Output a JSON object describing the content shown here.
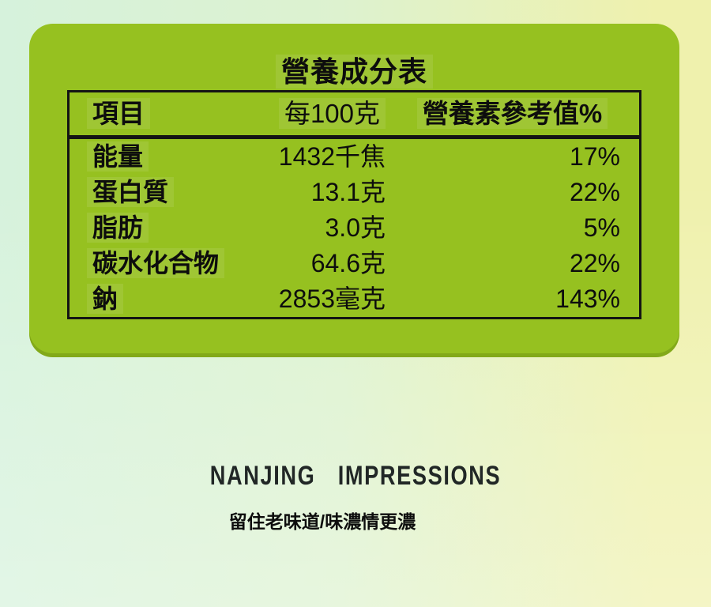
{
  "colors": {
    "panel_green": "#96c120",
    "bg_left": "#d6f2dc",
    "bg_right": "#eff1ad",
    "table_border": "#141414",
    "ink": "#0d0d0d",
    "brand_ink": "#212726"
  },
  "nutrition_table": {
    "title": "營養成分表",
    "headers": [
      "項目",
      "每100克",
      "營養素參考值%"
    ],
    "rows": [
      {
        "item": "能量",
        "per_100g": "1432千焦",
        "nrv": "17%"
      },
      {
        "item": "蛋白質",
        "per_100g": "13.1克",
        "nrv": "22%"
      },
      {
        "item": "脂肪",
        "per_100g": "3.0克",
        "nrv": "5%"
      },
      {
        "item": "碳水化合物",
        "per_100g": "64.6克",
        "nrv": "22%"
      },
      {
        "item": "鈉",
        "per_100g": "2853毫克",
        "nrv": "143%"
      }
    ]
  },
  "brand": {
    "name": "NANJING IMPRESSIONS",
    "tagline": "留住老味道/味濃情更濃"
  }
}
